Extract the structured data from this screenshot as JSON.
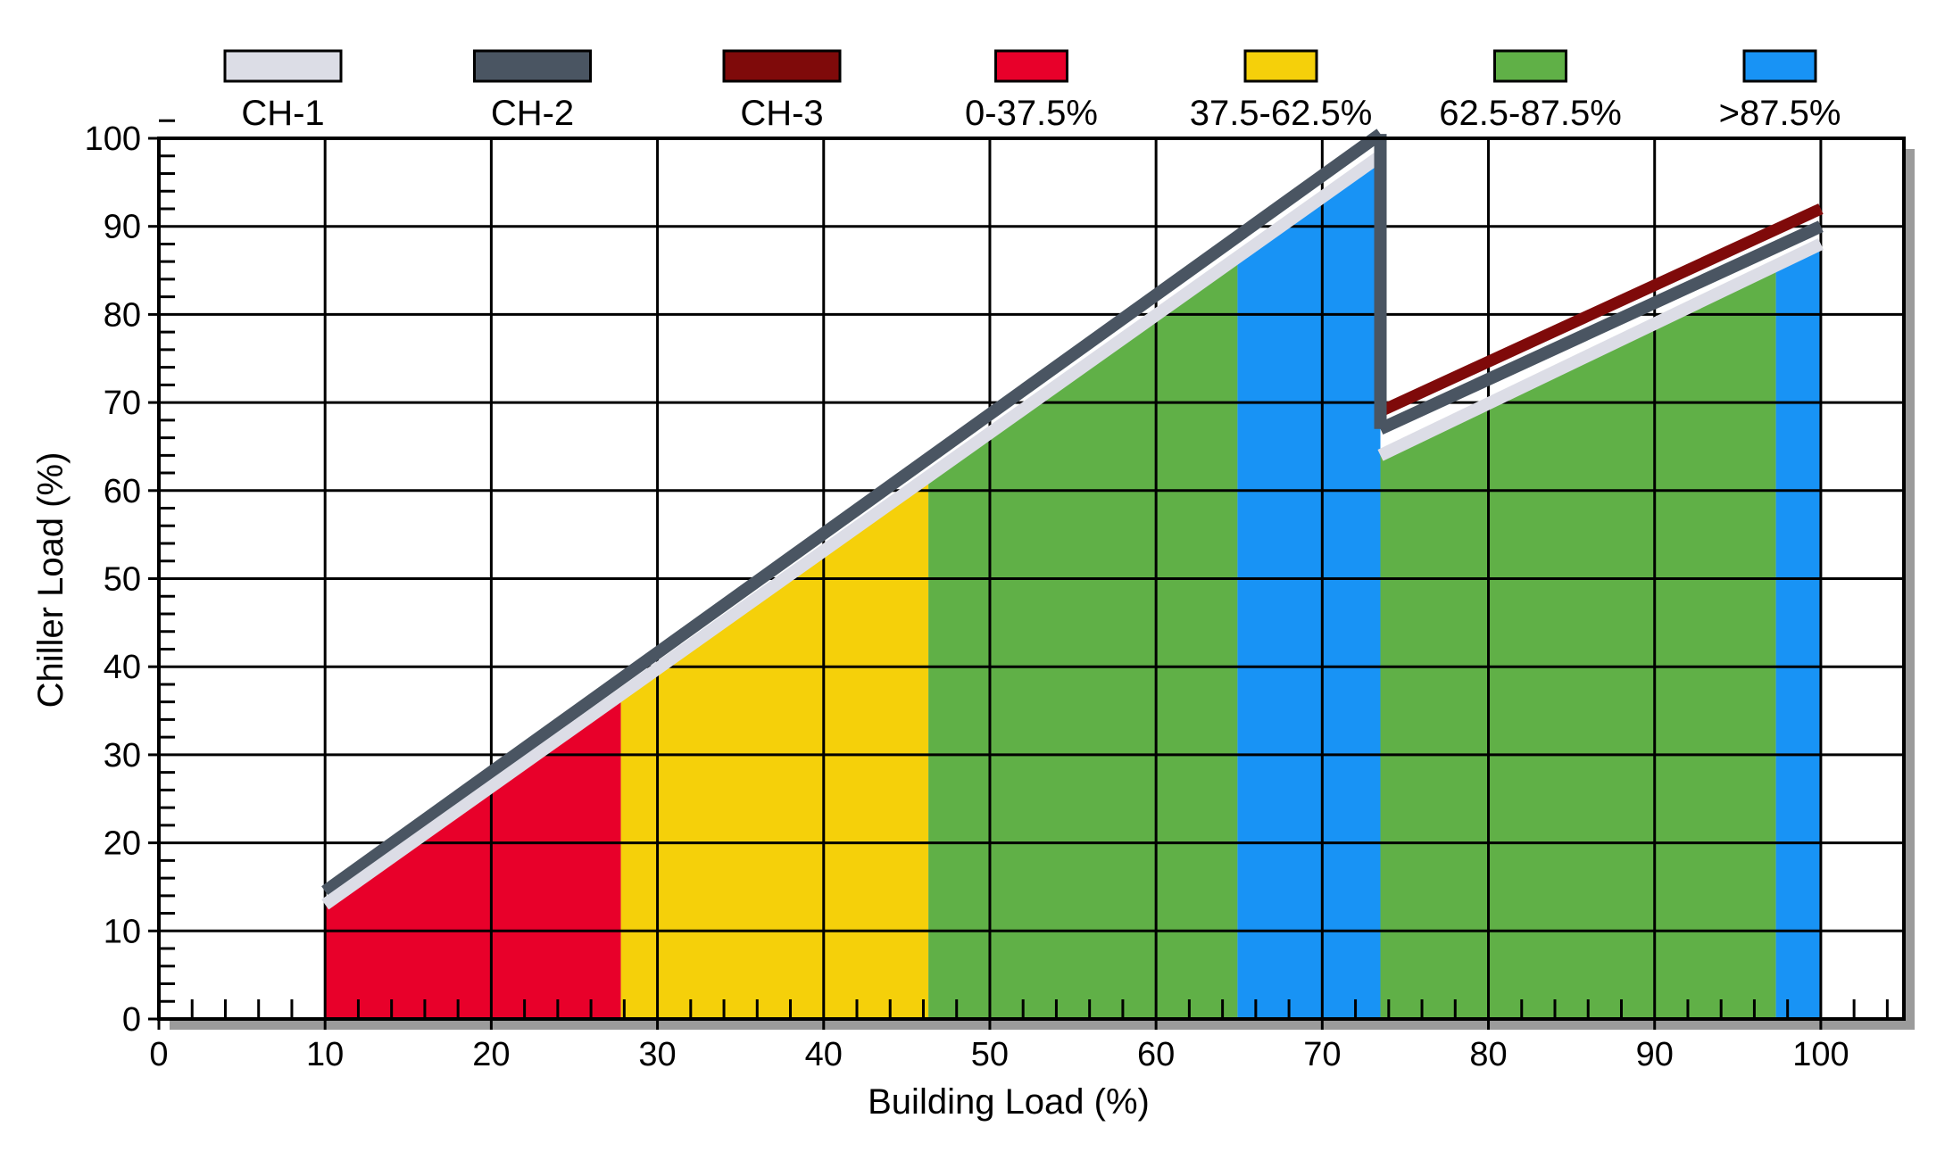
{
  "chart_data": {
    "type": "area",
    "title": "",
    "xlabel": "Building Load (%)",
    "ylabel": "Chiller Load (%)",
    "xlim": [
      0,
      105
    ],
    "ylim": [
      0,
      100
    ],
    "xticks": [
      0,
      10,
      20,
      30,
      40,
      50,
      60,
      70,
      80,
      90,
      100
    ],
    "yticks": [
      0,
      10,
      20,
      30,
      40,
      50,
      60,
      70,
      80,
      90,
      100
    ],
    "grid": true,
    "legend_position": "top",
    "legend": [
      {
        "label": "CH-1",
        "color": "#dcdde6"
      },
      {
        "label": "CH-2",
        "color": "#4a5562"
      },
      {
        "label": "CH-3",
        "color": "#7f0a0a"
      },
      {
        "label": "0-37.5%",
        "color": "#e8002a"
      },
      {
        "label": "37.5-62.5%",
        "color": "#f5d00a"
      },
      {
        "label": "62.5-87.5%",
        "color": "#60b047"
      },
      {
        "label": ">87.5%",
        "color": "#1893f5"
      }
    ],
    "series": [
      {
        "name": "CH-1",
        "color": "#dcdde6",
        "points": [
          [
            10,
            13
          ],
          [
            73.5,
            98
          ],
          [
            73.5,
            64
          ],
          [
            100,
            88
          ]
        ]
      },
      {
        "name": "CH-2",
        "color": "#4a5562",
        "points": [
          [
            10,
            14.5
          ],
          [
            73.5,
            100.5
          ],
          [
            73.5,
            67
          ],
          [
            100,
            90
          ]
        ]
      },
      {
        "name": "CH-3",
        "color": "#7f0a0a",
        "points": [
          [
            73.5,
            69
          ],
          [
            100,
            92
          ]
        ]
      }
    ],
    "regions": [
      {
        "name": "0-37.5%",
        "color": "#e8002a",
        "x": [
          10,
          27.8
        ]
      },
      {
        "name": "37.5-62.5%",
        "color": "#f5d00a",
        "x": [
          27.8,
          46.3
        ]
      },
      {
        "name": "62.5-87.5%",
        "color": "#60b047",
        "x": [
          46.3,
          64.9
        ]
      },
      {
        "name": ">87.5%",
        "color": "#1893f5",
        "x": [
          64.9,
          73.5
        ]
      },
      {
        "name": "62.5-87.5%",
        "color": "#60b047",
        "x": [
          73.5,
          97.3
        ]
      },
      {
        "name": ">87.5%",
        "color": "#1893f5",
        "x": [
          97.3,
          100
        ]
      }
    ]
  }
}
